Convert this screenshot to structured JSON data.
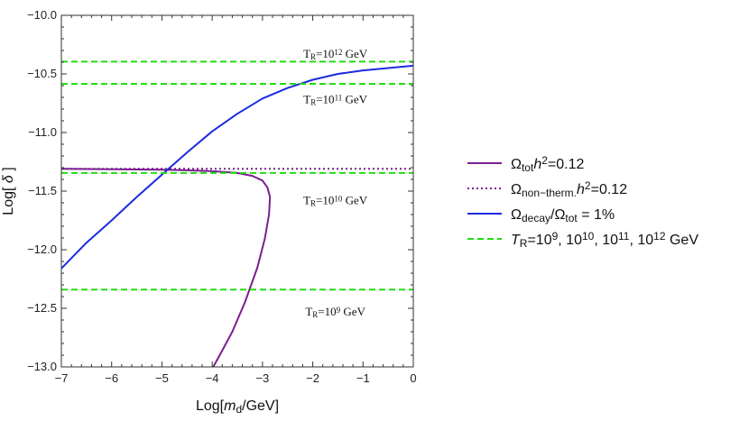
{
  "chart_data": {
    "type": "line",
    "xlabel": {
      "prefix": "Log[",
      "var": "m",
      "sub": "d",
      "suffix": "/GeV]"
    },
    "ylabel": {
      "prefix": "Log[ ",
      "var": "δ",
      "suffix": " ]"
    },
    "xlim": [
      -7,
      0
    ],
    "ylim": [
      -13.0,
      -10.0
    ],
    "x_ticks": [
      -7,
      -6,
      -5,
      -4,
      -3,
      -2,
      -1,
      0
    ],
    "x_tick_labels": [
      "−7",
      "−6",
      "−5",
      "−4",
      "−3",
      "−2",
      "−1",
      "0"
    ],
    "y_ticks": [
      -13.0,
      -12.5,
      -12.0,
      -11.5,
      -11.0,
      -10.5,
      -10.0
    ],
    "y_tick_labels": [
      "−13.0",
      "−12.5",
      "−12.0",
      "−11.5",
      "−11.0",
      "−10.5",
      "−10.0"
    ],
    "grid": false,
    "legend_position": "right",
    "colors": {
      "tot": "#7a1f8f",
      "nontherm": "#7a1f8f",
      "decay": "#1a2be0",
      "tr": "#22dd11"
    },
    "series": [
      {
        "key": "tot",
        "style": "solid",
        "points": [
          [
            -7,
            -11.31
          ],
          [
            -6,
            -11.313
          ],
          [
            -5,
            -11.317
          ],
          [
            -4.5,
            -11.322
          ],
          [
            -4.0,
            -11.33
          ],
          [
            -3.5,
            -11.345
          ],
          [
            -3.2,
            -11.37
          ],
          [
            -3.0,
            -11.41
          ],
          [
            -2.9,
            -11.47
          ],
          [
            -2.85,
            -11.55
          ],
          [
            -2.87,
            -11.7
          ],
          [
            -2.95,
            -11.9
          ],
          [
            -3.1,
            -12.15
          ],
          [
            -3.35,
            -12.45
          ],
          [
            -3.6,
            -12.7
          ],
          [
            -3.85,
            -12.9
          ],
          [
            -3.98,
            -13.0
          ]
        ]
      },
      {
        "key": "nontherm",
        "style": "dotted",
        "points": [
          [
            -7,
            -11.31
          ],
          [
            0,
            -11.31
          ]
        ]
      },
      {
        "key": "decay",
        "style": "solid",
        "points": [
          [
            -7,
            -12.16
          ],
          [
            -6.5,
            -11.94
          ],
          [
            -6,
            -11.75
          ],
          [
            -5.5,
            -11.55
          ],
          [
            -5,
            -11.36
          ],
          [
            -4.5,
            -11.17
          ],
          [
            -4,
            -10.99
          ],
          [
            -3.5,
            -10.84
          ],
          [
            -3,
            -10.71
          ],
          [
            -2.5,
            -10.62
          ],
          [
            -2,
            -10.55
          ],
          [
            -1.5,
            -10.5
          ],
          [
            -1,
            -10.47
          ],
          [
            -0.5,
            -10.45
          ],
          [
            0,
            -10.43
          ]
        ]
      },
      {
        "key": "tr9",
        "style": "dashed",
        "points": [
          [
            -7,
            -12.34
          ],
          [
            0,
            -12.34
          ]
        ]
      },
      {
        "key": "tr10",
        "style": "dashed",
        "points": [
          [
            -7,
            -11.345
          ],
          [
            0,
            -11.345
          ]
        ]
      },
      {
        "key": "tr11",
        "style": "dashed",
        "points": [
          [
            -7,
            -10.585
          ],
          [
            0,
            -10.585
          ]
        ]
      },
      {
        "key": "tr12",
        "style": "dashed",
        "points": [
          [
            -7,
            -10.395
          ],
          [
            0,
            -10.395
          ]
        ]
      }
    ],
    "annotations": [
      {
        "x": -1.55,
        "y": -10.33,
        "base": "T",
        "sub": "R",
        "eq": "=10",
        "sup": "12",
        "unit": " GeV"
      },
      {
        "x": -1.55,
        "y": -10.72,
        "base": "T",
        "sub": "R",
        "eq": "=10",
        "sup": "11",
        "unit": " GeV"
      },
      {
        "x": -1.55,
        "y": -11.58,
        "base": "T",
        "sub": "R",
        "eq": "=10",
        "sup": "10",
        "unit": " GeV"
      },
      {
        "x": -1.55,
        "y": -12.53,
        "base": "T",
        "sub": "R",
        "eq": "=10",
        "sup": "9",
        "unit": " GeV"
      }
    ],
    "legend": [
      {
        "key": "tot",
        "style": "solid",
        "parts": [
          [
            "Ω",
            ""
          ],
          [
            "tot",
            "sub"
          ],
          [
            "h",
            "ital"
          ],
          [
            "2",
            "sup"
          ],
          [
            "=0.12",
            ""
          ]
        ]
      },
      {
        "key": "nontherm",
        "style": "dotted",
        "parts": [
          [
            "Ω",
            ""
          ],
          [
            "non−therm.",
            "sub"
          ],
          [
            "h",
            "ital"
          ],
          [
            "2",
            "sup"
          ],
          [
            "=0.12",
            ""
          ]
        ]
      },
      {
        "key": "decay",
        "style": "solid",
        "parts": [
          [
            "Ω",
            ""
          ],
          [
            "decay",
            "sub"
          ],
          [
            "/Ω",
            ""
          ],
          [
            "tot",
            "sub"
          ],
          [
            " = 1%",
            ""
          ]
        ]
      },
      {
        "key": "tr",
        "style": "dashed",
        "parts": [
          [
            "T",
            "ital"
          ],
          [
            "R",
            "sub"
          ],
          [
            "=10",
            ""
          ],
          [
            "9",
            "sup"
          ],
          [
            ", 10",
            ""
          ],
          [
            "10",
            "sup"
          ],
          [
            ", 10",
            ""
          ],
          [
            "11",
            "sup"
          ],
          [
            ", 10",
            ""
          ],
          [
            "12",
            "sup"
          ],
          [
            " GeV",
            ""
          ]
        ]
      }
    ]
  }
}
